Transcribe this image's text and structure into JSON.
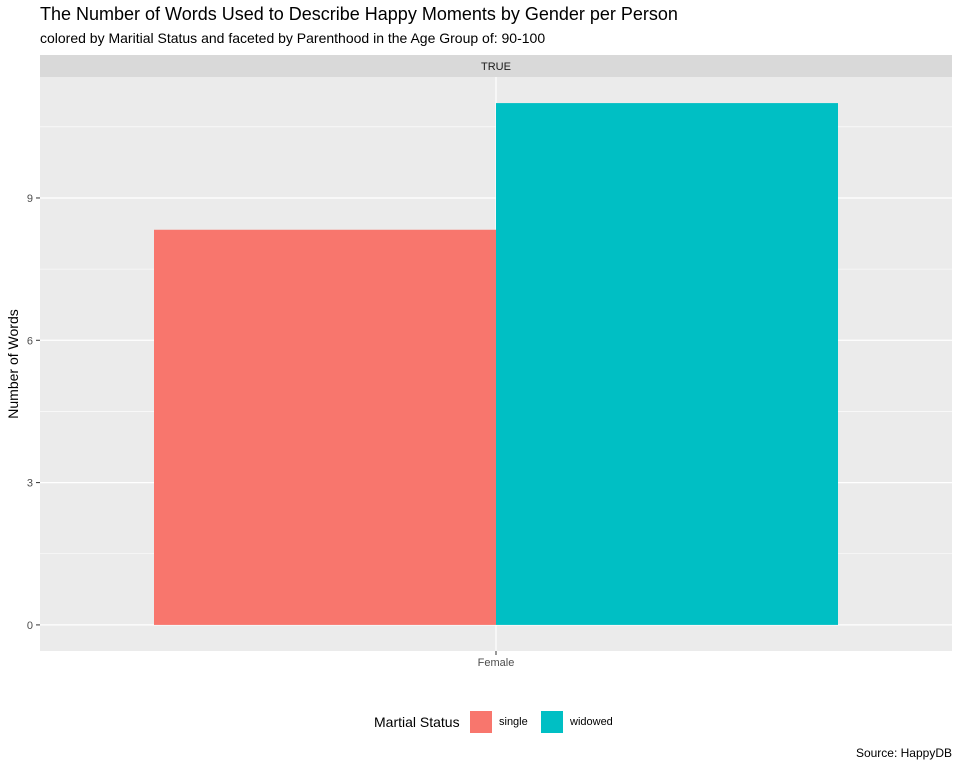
{
  "title": "The Number of Words Used to Describe Happy Moments by Gender per Person",
  "subtitle": "colored by Maritial Status and faceted by Parenthood in the Age Group of: 90-100",
  "caption": "Source: HappyDB",
  "colors": {
    "single": "#F8766D",
    "widowed": "#00BFC4",
    "panel": "#EBEBEB",
    "strip": "#D9D9D9"
  },
  "chart_data": {
    "type": "bar",
    "facet_label": "TRUE",
    "categories": [
      "Female"
    ],
    "series": [
      {
        "name": "single",
        "values": [
          8.33
        ]
      },
      {
        "name": "widowed",
        "values": [
          11.0
        ]
      }
    ],
    "xlabel": "",
    "ylabel": "Number of Words",
    "ylim": [
      -0.55,
      11.55
    ],
    "yticks": [
      0,
      3,
      6,
      9
    ],
    "grid": true,
    "legend": {
      "title": "Martial Status",
      "position": "bottom",
      "entries": [
        "single",
        "widowed"
      ]
    }
  }
}
